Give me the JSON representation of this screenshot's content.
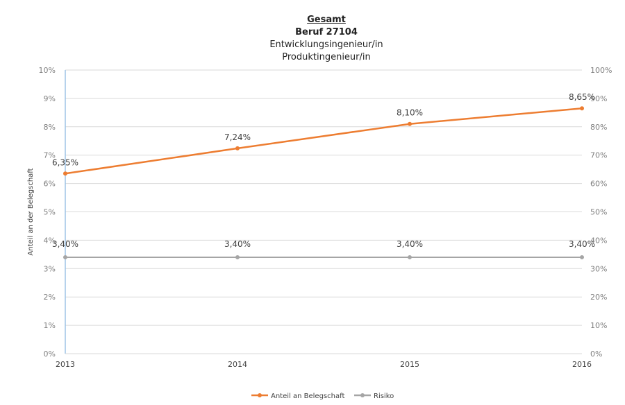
{
  "chart_data": {
    "type": "line",
    "title": "Gesamt",
    "subtitle_lines": [
      "Beruf 27104",
      "Entwicklungsingenieur/in",
      "Produktingenieur/in"
    ],
    "categories": [
      "2013",
      "2014",
      "2015",
      "2016"
    ],
    "ylabel": "Anteil an der Belegschaft",
    "ylim": [
      0,
      10
    ],
    "y_ticks": [
      "0%",
      "1%",
      "2%",
      "3%",
      "4%",
      "5%",
      "6%",
      "7%",
      "8%",
      "9%",
      "10%"
    ],
    "ylim_secondary": [
      0,
      100
    ],
    "y2_ticks": [
      "0%",
      "10%",
      "20%",
      "30%",
      "40%",
      "50%",
      "60%",
      "70%",
      "80%",
      "90%",
      "100%"
    ],
    "grid": true,
    "legend_position": "bottom",
    "series": [
      {
        "name": "Anteil an Belegschaft",
        "values": [
          6.35,
          7.24,
          8.1,
          8.65
        ],
        "labels": [
          "6,35%",
          "7,24%",
          "8,10%",
          "8,65%"
        ],
        "color": "#ED7D31",
        "axis": "primary"
      },
      {
        "name": "Risiko",
        "values": [
          3.4,
          3.4,
          3.4,
          3.4
        ],
        "labels": [
          "3,40%",
          "3,40%",
          "3,40%",
          "3,40%"
        ],
        "color": "#A5A5A5",
        "axis": "secondary"
      }
    ]
  }
}
